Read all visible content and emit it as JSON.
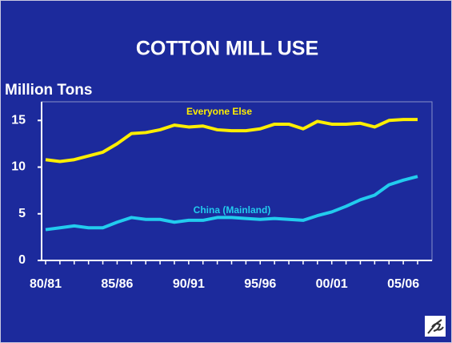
{
  "chart_data": {
    "type": "line",
    "title": "COTTON MILL USE",
    "y_label": "Million Tons",
    "categories": [
      "80/81",
      null,
      null,
      null,
      null,
      "85/86",
      null,
      null,
      null,
      null,
      "90/91",
      null,
      null,
      null,
      null,
      "95/96",
      null,
      null,
      null,
      null,
      "00/01",
      null,
      null,
      null,
      null,
      "05/06",
      null
    ],
    "series": [
      {
        "name": "Everyone Else",
        "color": "#ffee00",
        "values": [
          10.8,
          10.6,
          10.8,
          11.2,
          11.6,
          12.5,
          13.6,
          13.7,
          14.0,
          14.5,
          14.3,
          14.4,
          14.0,
          13.9,
          13.9,
          14.1,
          14.6,
          14.6,
          14.1,
          14.9,
          14.6,
          14.6,
          14.7,
          14.3,
          15.0,
          15.1,
          15.1
        ]
      },
      {
        "name": "China (Mainland)",
        "color": "#22ccee",
        "values": [
          3.3,
          3.5,
          3.7,
          3.5,
          3.5,
          4.1,
          4.6,
          4.4,
          4.4,
          4.1,
          4.3,
          4.3,
          4.6,
          4.6,
          4.5,
          4.4,
          4.5,
          4.4,
          4.3,
          4.8,
          5.2,
          5.8,
          6.5,
          7.0,
          8.1,
          8.6,
          9.0
        ]
      }
    ],
    "ylim": [
      0,
      17
    ],
    "yticks": [
      0,
      5,
      10,
      15
    ]
  }
}
